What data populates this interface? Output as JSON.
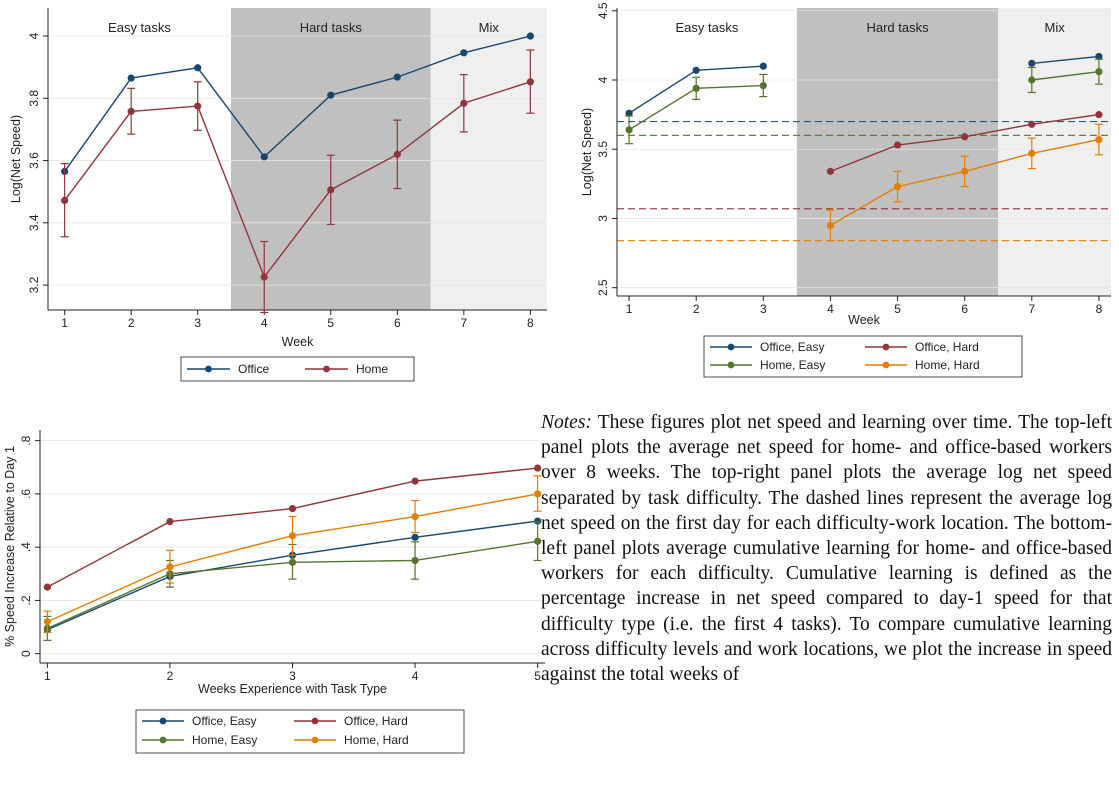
{
  "chart_data": [
    {
      "id": "top-left",
      "type": "line",
      "xlabel": "Week",
      "ylabel": "Log(Net Speed)",
      "xlim": [
        0.75,
        8.25
      ],
      "ylim": [
        3.12,
        4.09
      ],
      "x_ticks": [
        1,
        2,
        3,
        4,
        5,
        6,
        7,
        8
      ],
      "x_tick_labels": [
        "1",
        "2",
        "3",
        "4",
        "5",
        "6",
        "7",
        "8"
      ],
      "y_ticks": [
        3.2,
        3.4,
        3.6,
        3.8,
        4
      ],
      "y_tick_labels": [
        "3.2",
        "3.4",
        "3.6",
        "3.8",
        "4"
      ],
      "grid": true,
      "legend_position": "bottom",
      "regions": [
        {
          "label": "Easy tasks",
          "x_from": 0.75,
          "x_to": 3.5,
          "color": "#ffffff"
        },
        {
          "label": "Hard tasks",
          "x_from": 3.5,
          "x_to": 6.5,
          "color": "#c0c0c0"
        },
        {
          "label": "Mix",
          "x_from": 6.5,
          "x_to": 8.25,
          "color": "#efefef"
        }
      ],
      "series": [
        {
          "name": "Office",
          "color": "#1a476f",
          "x": [
            1,
            2,
            3,
            4,
            5,
            6,
            7,
            8
          ],
          "y": [
            3.565,
            3.865,
            3.898,
            3.612,
            3.81,
            3.868,
            3.946,
            4.0
          ],
          "err": null
        },
        {
          "name": "Home",
          "color": "#90353b",
          "x": [
            1,
            2,
            3,
            4,
            5,
            6,
            7,
            8
          ],
          "y": [
            3.472,
            3.758,
            3.775,
            3.226,
            3.506,
            3.62,
            3.784,
            3.853
          ],
          "err": [
            [
              3.355,
              3.59
            ],
            [
              3.685,
              3.832
            ],
            [
              3.697,
              3.853
            ],
            [
              3.112,
              3.34
            ],
            [
              3.395,
              3.617
            ],
            [
              3.51,
              3.73
            ],
            [
              3.692,
              3.876
            ],
            [
              3.752,
              3.955
            ]
          ]
        }
      ]
    },
    {
      "id": "top-right",
      "type": "line",
      "xlabel": "Week",
      "ylabel": "Log(Net Speed)",
      "xlim": [
        0.82,
        8.18
      ],
      "ylim": [
        2.44,
        4.52
      ],
      "x_ticks": [
        1,
        2,
        3,
        4,
        5,
        6,
        7,
        8
      ],
      "x_tick_labels": [
        "1",
        "2",
        "3",
        "4",
        "5",
        "6",
        "7",
        "8"
      ],
      "y_ticks": [
        2.5,
        3,
        3.5,
        4,
        4.5
      ],
      "y_tick_labels": [
        "2.5",
        "3",
        "3.5",
        "4",
        "4.5"
      ],
      "grid": true,
      "legend_position": "bottom",
      "regions": [
        {
          "label": "Easy tasks",
          "x_from": 0.82,
          "x_to": 3.5,
          "color": "#ffffff"
        },
        {
          "label": "Hard tasks",
          "x_from": 3.5,
          "x_to": 6.5,
          "color": "#c0c0c0"
        },
        {
          "label": "Mix",
          "x_from": 6.5,
          "x_to": 8.18,
          "color": "#efefef"
        }
      ],
      "reference_lines": [
        {
          "y": 3.7,
          "color": "#1a476f"
        },
        {
          "y": 3.6,
          "color": "#55752f"
        },
        {
          "y": 3.07,
          "color": "#90353b"
        },
        {
          "y": 2.84,
          "color": "#e37e00"
        }
      ],
      "series": [
        {
          "name": "Office, Easy",
          "color": "#1a476f",
          "x": [
            1,
            2,
            3,
            7,
            8
          ],
          "y": [
            3.76,
            4.07,
            4.1,
            4.12,
            4.17
          ],
          "segments": [
            [
              0,
              3
            ],
            [
              3,
              5
            ]
          ],
          "err": null
        },
        {
          "name": "Office, Hard",
          "color": "#90353b",
          "x": [
            4,
            5,
            6,
            7,
            8
          ],
          "y": [
            3.34,
            3.53,
            3.59,
            3.68,
            3.75
          ],
          "segments": [
            [
              0,
              5
            ]
          ],
          "err": null
        },
        {
          "name": "Home, Easy",
          "color": "#55752f",
          "x": [
            1,
            2,
            3,
            7,
            8
          ],
          "y": [
            3.64,
            3.94,
            3.96,
            4.0,
            4.06
          ],
          "segments": [
            [
              0,
              3
            ],
            [
              3,
              5
            ]
          ],
          "err": [
            [
              3.54,
              3.74
            ],
            [
              3.86,
              4.02
            ],
            [
              3.88,
              4.04
            ],
            [
              3.91,
              4.09
            ],
            [
              3.97,
              4.15
            ]
          ]
        },
        {
          "name": "Home, Hard",
          "color": "#e37e00",
          "x": [
            4,
            5,
            6,
            7,
            8
          ],
          "y": [
            2.95,
            3.23,
            3.34,
            3.47,
            3.57
          ],
          "segments": [
            [
              0,
              5
            ]
          ],
          "err": [
            [
              2.84,
              3.06
            ],
            [
              3.12,
              3.34
            ],
            [
              3.23,
              3.45
            ],
            [
              3.36,
              3.58
            ],
            [
              3.46,
              3.68
            ]
          ]
        }
      ]
    },
    {
      "id": "bottom-left",
      "type": "line",
      "xlabel": "Weeks Experience with Task Type",
      "ylabel": "% Speed Increase Relative to Day 1",
      "xlim": [
        0.94,
        5.06
      ],
      "ylim": [
        -0.035,
        0.84
      ],
      "x_ticks": [
        1,
        2,
        3,
        4,
        5
      ],
      "x_tick_labels": [
        "1",
        "2",
        "3",
        "4",
        "5"
      ],
      "y_ticks": [
        0,
        0.2,
        0.4,
        0.6,
        0.8
      ],
      "y_tick_labels": [
        "0",
        ".2",
        ".4",
        ".6",
        ".8"
      ],
      "grid": true,
      "legend_position": "bottom",
      "series": [
        {
          "name": "Office, Easy",
          "color": "#1a476f",
          "x": [
            1,
            2,
            3,
            4,
            5
          ],
          "y": [
            0.09,
            0.29,
            0.37,
            0.437,
            0.498
          ],
          "err": null
        },
        {
          "name": "Office, Hard",
          "color": "#90353b",
          "x": [
            1,
            2,
            3,
            4,
            5
          ],
          "y": [
            0.25,
            0.496,
            0.545,
            0.648,
            0.697
          ],
          "err": null
        },
        {
          "name": "Home, Easy",
          "color": "#55752f",
          "x": [
            1,
            2,
            3,
            4,
            5
          ],
          "y": [
            0.095,
            0.3,
            0.343,
            0.35,
            0.422
          ],
          "err": [
            [
              0.05,
              0.14
            ],
            [
              0.25,
              0.35
            ],
            [
              0.28,
              0.41
            ],
            [
              0.28,
              0.42
            ],
            [
              0.35,
              0.495
            ]
          ]
        },
        {
          "name": "Home, Hard",
          "color": "#e37e00",
          "x": [
            1,
            2,
            3,
            4,
            5
          ],
          "y": [
            0.12,
            0.326,
            0.443,
            0.515,
            0.6
          ],
          "err": [
            [
              0.08,
              0.16
            ],
            [
              0.265,
              0.388
            ],
            [
              0.37,
              0.515
            ],
            [
              0.455,
              0.575
            ],
            [
              0.535,
              0.668
            ]
          ]
        }
      ]
    }
  ],
  "notes": {
    "lead": "Notes:",
    "text": " These figures plot net speed and learning over time. The top-left panel plots the average net speed for home- and office-based workers over 8 weeks. The top-right panel plots the average log net speed separated by task difficulty. The dashed lines represent the average log net speed on the first day for each difficulty-work location. The bottom-left panel plots average cumulative learning for home- and office-based workers for each difficulty. Cumulative learning is defined as the percentage increase in net speed compared to day-1 speed for that difficulty type (i.e. the first 4 tasks). To compare cumulative learning across difficulty levels and work locations, we plot the increase in speed against the total weeks of"
  }
}
